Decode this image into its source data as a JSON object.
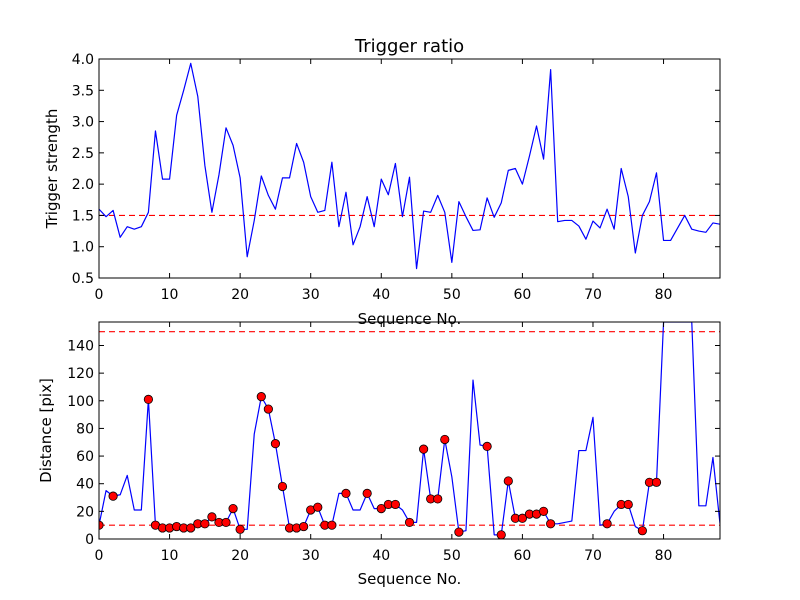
{
  "chart_data": [
    {
      "type": "line",
      "title": "Trigger ratio",
      "xlabel": "Sequence No.",
      "ylabel": "Trigger strength",
      "xlim": [
        0,
        88
      ],
      "ylim": [
        0.5,
        4.0
      ],
      "xticks": [
        0,
        10,
        20,
        30,
        40,
        50,
        60,
        70,
        80
      ],
      "yticks": [
        0.5,
        1.0,
        1.5,
        2.0,
        2.5,
        3.0,
        3.5,
        4.0
      ],
      "ytick_labels": [
        "0.5",
        "1.0",
        "1.5",
        "2.0",
        "2.5",
        "3.0",
        "3.5",
        "4.0"
      ],
      "grid": false,
      "series": [
        {
          "color": "#0000ff",
          "style": "solid",
          "x": [
            0,
            1,
            2,
            3,
            4,
            5,
            6,
            7,
            8,
            9,
            10,
            11,
            12,
            13,
            14,
            15,
            16,
            17,
            18,
            19,
            20,
            21,
            22,
            23,
            24,
            25,
            26,
            27,
            28,
            29,
            30,
            31,
            32,
            33,
            34,
            35,
            36,
            37,
            38,
            39,
            40,
            41,
            42,
            43,
            44,
            45,
            46,
            47,
            48,
            49,
            50,
            51,
            52,
            53,
            54,
            55,
            56,
            57,
            58,
            59,
            60,
            61,
            62,
            63,
            64,
            65,
            66,
            67,
            68,
            69,
            70,
            71,
            72,
            73,
            74,
            75,
            76,
            77,
            78,
            79,
            80,
            81,
            82,
            83,
            84,
            85,
            86,
            87,
            88
          ],
          "values": [
            1.6,
            1.48,
            1.58,
            1.15,
            1.32,
            1.28,
            1.32,
            1.55,
            2.85,
            2.08,
            2.08,
            3.1,
            3.5,
            3.93,
            3.4,
            2.3,
            1.55,
            2.15,
            2.9,
            2.62,
            2.1,
            0.84,
            1.42,
            2.13,
            1.82,
            1.6,
            2.1,
            2.1,
            2.65,
            2.35,
            1.8,
            1.55,
            1.58,
            2.35,
            1.32,
            1.87,
            1.03,
            1.32,
            1.8,
            1.32,
            2.08,
            1.83,
            2.33,
            1.48,
            2.11,
            0.65,
            1.57,
            1.55,
            1.82,
            1.55,
            0.75,
            1.72,
            1.48,
            1.26,
            1.27,
            1.78,
            1.47,
            1.7,
            2.22,
            2.25,
            2.0,
            2.45,
            2.93,
            2.4,
            3.83,
            1.4,
            1.42,
            1.42,
            1.33,
            1.12,
            1.41,
            1.3,
            1.6,
            1.28,
            2.25,
            1.8,
            0.9,
            1.5,
            1.72,
            2.18,
            1.1,
            1.1,
            1.3,
            1.5,
            1.28,
            1.25,
            1.23,
            1.38,
            1.36
          ]
        }
      ],
      "reference_lines": [
        {
          "y": 1.5,
          "color": "#ff0000",
          "style": "dashed"
        }
      ]
    },
    {
      "type": "line",
      "title": "",
      "xlabel": "Sequence No.",
      "ylabel": "Distance [pix]",
      "xlim": [
        0,
        88
      ],
      "ylim": [
        0,
        157
      ],
      "xticks": [
        0,
        10,
        20,
        30,
        40,
        50,
        60,
        70,
        80
      ],
      "yticks": [
        0,
        20,
        40,
        60,
        80,
        100,
        120,
        140
      ],
      "ytick_labels": [
        "0",
        "20",
        "40",
        "60",
        "80",
        "100",
        "120",
        "140"
      ],
      "grid": false,
      "series": [
        {
          "color": "#0000ff",
          "style": "solid",
          "x": [
            0,
            1,
            2,
            3,
            4,
            5,
            6,
            7,
            8,
            9,
            10,
            11,
            12,
            13,
            14,
            15,
            16,
            17,
            18,
            19,
            20,
            21,
            22,
            23,
            24,
            25,
            26,
            27,
            28,
            29,
            30,
            31,
            32,
            33,
            34,
            35,
            36,
            37,
            38,
            39,
            40,
            41,
            42,
            43,
            44,
            45,
            46,
            47,
            48,
            49,
            50,
            51,
            52,
            53,
            54,
            55,
            56,
            57,
            58,
            59,
            60,
            61,
            62,
            63,
            64,
            65,
            66,
            67,
            68,
            69,
            70,
            71,
            72,
            73,
            74,
            75,
            76,
            77,
            78,
            79,
            80,
            81,
            82,
            83,
            84,
            85,
            86,
            87,
            88
          ],
          "values": [
            10,
            35,
            31,
            32,
            46,
            21,
            21,
            101,
            10,
            8,
            8,
            9,
            8,
            8,
            11,
            11,
            16,
            12,
            12,
            22,
            7,
            7,
            76,
            103,
            94,
            69,
            38,
            8,
            8,
            9,
            21,
            23,
            10,
            10,
            33,
            33,
            21,
            21,
            33,
            22,
            22,
            25,
            25,
            21,
            12,
            12,
            65,
            29,
            29,
            72,
            45,
            5,
            6,
            115,
            68,
            67,
            3,
            3,
            42,
            15,
            15,
            18,
            18,
            20,
            11,
            11,
            12,
            13,
            64,
            64,
            88,
            10,
            11,
            20,
            25,
            25,
            9,
            6,
            41,
            41,
            157,
            157,
            157,
            157,
            157,
            24,
            24,
            59,
            11
          ]
        }
      ],
      "markers": {
        "color": "#ff0000",
        "edge_color": "#000000",
        "shape": "circle",
        "x": [
          0,
          2,
          7,
          8,
          9,
          10,
          11,
          12,
          13,
          14,
          15,
          16,
          17,
          18,
          19,
          20,
          23,
          24,
          25,
          26,
          27,
          28,
          29,
          30,
          31,
          32,
          33,
          35,
          38,
          40,
          41,
          42,
          44,
          46,
          47,
          48,
          49,
          51,
          55,
          57,
          58,
          59,
          60,
          61,
          62,
          63,
          64,
          72,
          74,
          75,
          77,
          78,
          79
        ],
        "values": [
          10,
          31,
          101,
          10,
          8,
          8,
          9,
          8,
          8,
          11,
          11,
          16,
          12,
          12,
          22,
          7,
          103,
          94,
          69,
          38,
          8,
          8,
          9,
          21,
          23,
          10,
          10,
          33,
          33,
          22,
          25,
          25,
          12,
          65,
          29,
          29,
          72,
          5,
          67,
          3,
          42,
          15,
          15,
          18,
          18,
          20,
          11,
          11,
          25,
          25,
          6,
          41,
          41
        ]
      },
      "reference_lines": [
        {
          "y": 150,
          "color": "#ff0000",
          "style": "dashed"
        },
        {
          "y": 10,
          "color": "#ff0000",
          "style": "dashed"
        }
      ]
    }
  ]
}
